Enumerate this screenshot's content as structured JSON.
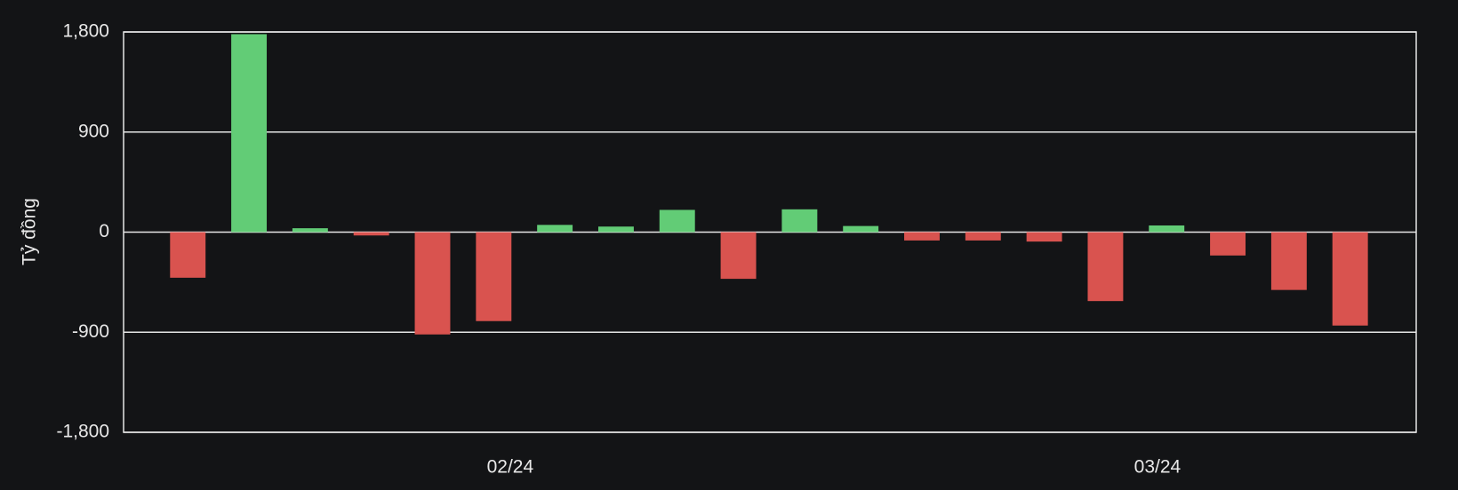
{
  "chart_data": {
    "type": "bar",
    "y_label": "Tỷ đồng",
    "x": [
      0,
      1,
      2,
      3,
      4,
      5,
      6,
      7,
      8,
      9,
      10,
      11,
      12,
      13,
      14,
      15,
      16,
      17,
      18,
      19
    ],
    "values": [
      -410,
      1780,
      35,
      -30,
      -920,
      -800,
      65,
      50,
      200,
      -420,
      205,
      55,
      -75,
      -75,
      -85,
      -620,
      60,
      -210,
      -520,
      -840
    ],
    "positive_color": "#62cc76",
    "negative_color": "#d9534f",
    "xlim": [
      -1.05,
      20.08
    ],
    "xticks": [
      {
        "value": 5.27,
        "label": "02/24"
      },
      {
        "value": 15.85,
        "label": "03/24"
      }
    ],
    "ylim": [
      -1800,
      1800
    ],
    "yticks": [
      {
        "value": 1800,
        "label": "1,800"
      },
      900,
      0,
      -900,
      {
        "value": -1800,
        "label": "-1,800"
      }
    ],
    "grid": true
  }
}
